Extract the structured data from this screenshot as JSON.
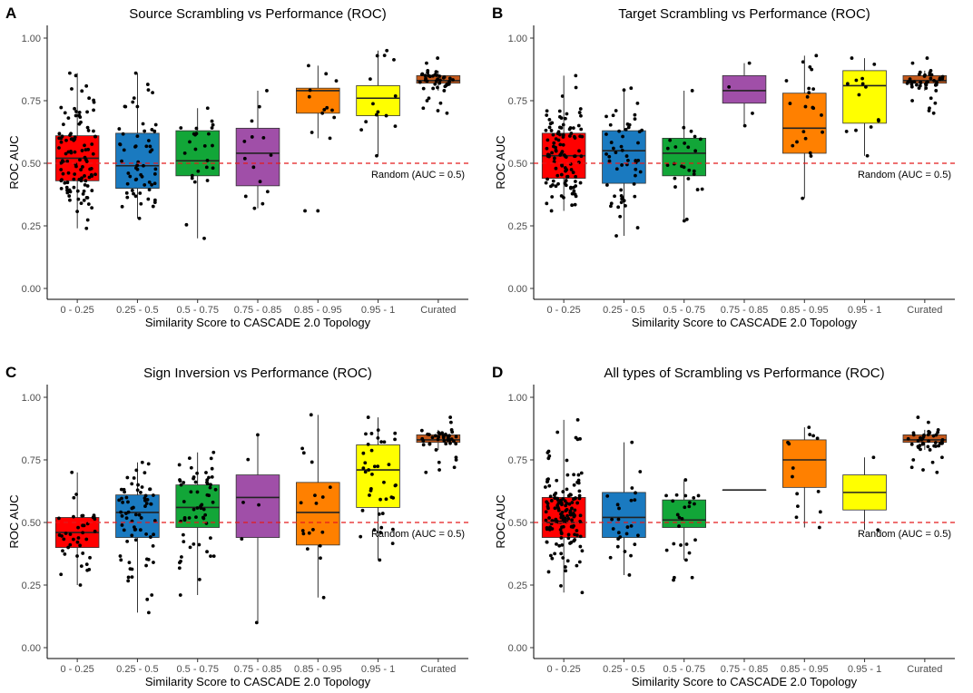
{
  "chart_data": [
    {
      "panel": "A",
      "type": "box",
      "title": "Source Scrambling vs Performance (ROC)",
      "xlabel": "Similarity Score to CASCADE 2.0 Topology",
      "ylabel": "ROC AUC",
      "ylim": [
        0,
        1
      ],
      "yticks": [
        "0.00",
        "0.25",
        "0.50",
        "0.75",
        "1.00"
      ],
      "reference": {
        "y": 0.5,
        "label": "Random (AUC = 0.5)",
        "color": "#e41a1c"
      },
      "categories": [
        "0 - 0.25",
        "0.25 - 0.5",
        "0.5 - 0.75",
        "0.75 - 0.85",
        "0.85 - 0.95",
        "0.95 - 1",
        "Curated"
      ],
      "colors": [
        "#ff0000",
        "#1a7ac0",
        "#12a638",
        "#a04fa8",
        "#ff8000",
        "#ffff00",
        "#c4581a"
      ],
      "boxes": [
        {
          "q1": 0.43,
          "median": 0.52,
          "q3": 0.61,
          "whisker_low": 0.24,
          "whisker_high": 0.86
        },
        {
          "q1": 0.4,
          "median": 0.49,
          "q3": 0.62,
          "whisker_low": 0.28,
          "whisker_high": 0.86
        },
        {
          "q1": 0.45,
          "median": 0.51,
          "q3": 0.63,
          "whisker_low": 0.2,
          "whisker_high": 0.72
        },
        {
          "q1": 0.41,
          "median": 0.54,
          "q3": 0.64,
          "whisker_low": 0.32,
          "whisker_high": 0.79
        },
        {
          "q1": 0.7,
          "median": 0.79,
          "q3": 0.8,
          "whisker_low": 0.6,
          "whisker_high": 0.89
        },
        {
          "q1": 0.69,
          "median": 0.76,
          "q3": 0.81,
          "whisker_low": 0.53,
          "whisker_high": 0.95
        },
        {
          "q1": 0.82,
          "median": 0.83,
          "q3": 0.85,
          "whisker_low": 0.79,
          "whisker_high": 0.87
        }
      ],
      "point_counts": [
        110,
        60,
        25,
        14,
        12,
        14,
        35
      ],
      "outliers": [
        [],
        [],
        [],
        [],
        [
          0.31,
          0.31
        ],
        [],
        [
          0.9,
          0.92,
          0.75,
          0.72,
          0.71,
          0.7,
          0.74,
          0.76
        ]
      ]
    },
    {
      "panel": "B",
      "type": "box",
      "title": "Target Scrambling vs Performance (ROC)",
      "xlabel": "Similarity Score to CASCADE 2.0 Topology",
      "ylabel": "ROC AUC",
      "ylim": [
        0,
        1
      ],
      "yticks": [
        "0.00",
        "0.25",
        "0.50",
        "0.75",
        "1.00"
      ],
      "reference": {
        "y": 0.5,
        "label": "Random (AUC = 0.5)",
        "color": "#e41a1c"
      },
      "categories": [
        "0 - 0.25",
        "0.25 - 0.5",
        "0.5 - 0.75",
        "0.75 - 0.85",
        "0.85 - 0.95",
        "0.95 - 1",
        "Curated"
      ],
      "colors": [
        "#ff0000",
        "#1a7ac0",
        "#12a638",
        "#a04fa8",
        "#ff8000",
        "#ffff00",
        "#c4581a"
      ],
      "boxes": [
        {
          "q1": 0.44,
          "median": 0.53,
          "q3": 0.62,
          "whisker_low": 0.31,
          "whisker_high": 0.85
        },
        {
          "q1": 0.42,
          "median": 0.55,
          "q3": 0.63,
          "whisker_low": 0.21,
          "whisker_high": 0.8
        },
        {
          "q1": 0.45,
          "median": 0.54,
          "q3": 0.6,
          "whisker_low": 0.27,
          "whisker_high": 0.79
        },
        {
          "q1": 0.74,
          "median": 0.79,
          "q3": 0.85,
          "whisker_low": 0.65,
          "whisker_high": 0.9
        },
        {
          "q1": 0.54,
          "median": 0.64,
          "q3": 0.78,
          "whisker_low": 0.36,
          "whisker_high": 0.93
        },
        {
          "q1": 0.66,
          "median": 0.81,
          "q3": 0.87,
          "whisker_low": 0.53,
          "whisker_high": 0.92
        },
        {
          "q1": 0.82,
          "median": 0.83,
          "q3": 0.85,
          "whisker_low": 0.79,
          "whisker_high": 0.87
        }
      ],
      "point_counts": [
        110,
        55,
        25,
        4,
        22,
        14,
        35
      ],
      "outliers": [
        [],
        [],
        [],
        [],
        [],
        [],
        [
          0.9,
          0.92,
          0.75,
          0.72,
          0.71,
          0.7,
          0.74,
          0.76
        ]
      ]
    },
    {
      "panel": "C",
      "type": "box",
      "title": "Sign Inversion vs Performance (ROC)",
      "xlabel": "Similarity Score to CASCADE 2.0 Topology",
      "ylabel": "ROC AUC",
      "ylim": [
        0,
        1
      ],
      "yticks": [
        "0.00",
        "0.25",
        "0.50",
        "0.75",
        "1.00"
      ],
      "reference": {
        "y": 0.5,
        "label": "Random (AUC = 0.5)",
        "color": "#e41a1c"
      },
      "categories": [
        "0 - 0.25",
        "0.25 - 0.5",
        "0.5 - 0.75",
        "0.75 - 0.85",
        "0.85 - 0.95",
        "0.95 - 1",
        "Curated"
      ],
      "colors": [
        "#ff0000",
        "#1a7ac0",
        "#12a638",
        "#a04fa8",
        "#ff8000",
        "#ffff00",
        "#c4581a"
      ],
      "boxes": [
        {
          "q1": 0.4,
          "median": 0.46,
          "q3": 0.52,
          "whisker_low": 0.25,
          "whisker_high": 0.7
        },
        {
          "q1": 0.44,
          "median": 0.54,
          "q3": 0.61,
          "whisker_low": 0.14,
          "whisker_high": 0.74
        },
        {
          "q1": 0.48,
          "median": 0.56,
          "q3": 0.65,
          "whisker_low": 0.21,
          "whisker_high": 0.78
        },
        {
          "q1": 0.44,
          "median": 0.6,
          "q3": 0.69,
          "whisker_low": 0.1,
          "whisker_high": 0.85
        },
        {
          "q1": 0.41,
          "median": 0.54,
          "q3": 0.66,
          "whisker_low": 0.2,
          "whisker_high": 0.93
        },
        {
          "q1": 0.56,
          "median": 0.71,
          "q3": 0.81,
          "whisker_low": 0.35,
          "whisker_high": 0.92
        },
        {
          "q1": 0.82,
          "median": 0.83,
          "q3": 0.85,
          "whisker_low": 0.79,
          "whisker_high": 0.87
        }
      ],
      "point_counts": [
        40,
        70,
        60,
        6,
        18,
        40,
        35
      ],
      "outliers": [
        [],
        [],
        [],
        [],
        [],
        [],
        [
          0.9,
          0.92,
          0.75,
          0.72,
          0.71,
          0.7,
          0.74,
          0.76
        ]
      ]
    },
    {
      "panel": "D",
      "type": "box",
      "title": "All types of Scrambling vs Performance (ROC)",
      "xlabel": "Similarity Score to CASCADE 2.0 Topology",
      "ylabel": "ROC AUC",
      "ylim": [
        0,
        1
      ],
      "yticks": [
        "0.00",
        "0.25",
        "0.50",
        "0.75",
        "1.00"
      ],
      "reference": {
        "y": 0.5,
        "label": "Random (AUC = 0.5)",
        "color": "#e41a1c"
      },
      "categories": [
        "0 - 0.25",
        "0.25 - 0.5",
        "0.5 - 0.75",
        "0.75 - 0.85",
        "0.85 - 0.95",
        "0.95 - 1",
        "Curated"
      ],
      "colors": [
        "#ff0000",
        "#1a7ac0",
        "#12a638",
        "#a04fa8",
        "#ff8000",
        "#ffff00",
        "#c4581a"
      ],
      "boxes": [
        {
          "q1": 0.44,
          "median": 0.5,
          "q3": 0.6,
          "whisker_low": 0.22,
          "whisker_high": 0.91
        },
        {
          "q1": 0.44,
          "median": 0.52,
          "q3": 0.62,
          "whisker_low": 0.29,
          "whisker_high": 0.82
        },
        {
          "q1": 0.48,
          "median": 0.51,
          "q3": 0.59,
          "whisker_low": 0.35,
          "whisker_high": 0.67
        },
        {
          "q1": 0.63,
          "median": 0.63,
          "q3": 0.63,
          "whisker_low": 0.63,
          "whisker_high": 0.63
        },
        {
          "q1": 0.64,
          "median": 0.75,
          "q3": 0.83,
          "whisker_low": 0.48,
          "whisker_high": 0.88
        },
        {
          "q1": 0.55,
          "median": 0.62,
          "q3": 0.69,
          "whisker_low": 0.47,
          "whisker_high": 0.76
        },
        {
          "q1": 0.82,
          "median": 0.83,
          "q3": 0.85,
          "whisker_low": 0.79,
          "whisker_high": 0.87
        }
      ],
      "point_counts": [
        150,
        25,
        22,
        0,
        14,
        2,
        35
      ],
      "outliers": [
        [],
        [],
        [
          0.28,
          0.28,
          0.27
        ],
        [],
        [],
        [],
        [
          0.9,
          0.92,
          0.75,
          0.72,
          0.71,
          0.7,
          0.74,
          0.76
        ]
      ]
    }
  ]
}
